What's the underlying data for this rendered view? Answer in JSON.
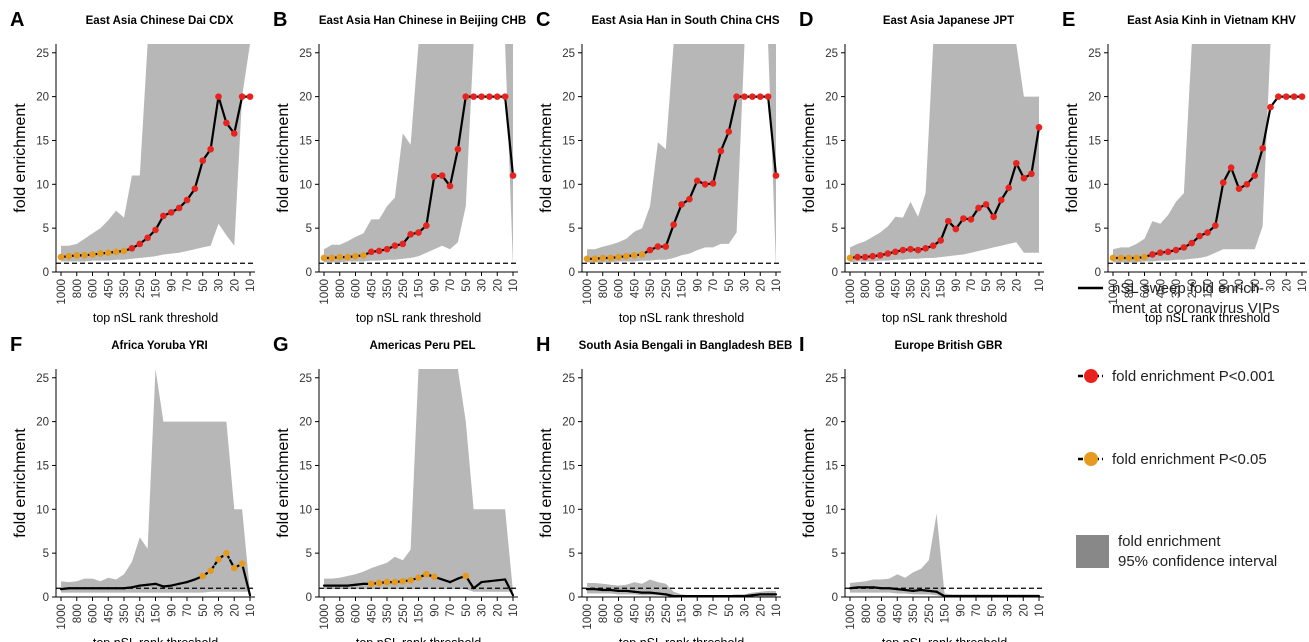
{
  "chart_data": {
    "type": "line",
    "layout": "multi-panel small multiples with shared legend",
    "x_tick_labels": [
      "1000",
      "800",
      "600",
      "450",
      "350",
      "250",
      "150",
      "90",
      "70",
      "50",
      "30",
      "20",
      "10"
    ],
    "x": [
      1000,
      900,
      800,
      700,
      600,
      500,
      450,
      400,
      350,
      300,
      250,
      200,
      150,
      100,
      90,
      80,
      70,
      60,
      50,
      40,
      30,
      25,
      20,
      15,
      10
    ],
    "ylim": [
      0,
      26
    ],
    "y_ticks": [
      "0",
      "5",
      "10",
      "15",
      "20",
      "25"
    ],
    "xlabel": "top nSL rank threshold",
    "ylabel": "fold enrichment",
    "reference_line": 1,
    "grid": false,
    "colors": {
      "line": "#000000",
      "p001": "#e8221c",
      "p05": "#e69a1e",
      "ci": "#b7b7b7",
      "legend_ci": "#888888"
    },
    "panels": [
      {
        "letter": "A",
        "title": "East Asia Chinese Dai CDX",
        "y": [
          1.7,
          1.8,
          1.9,
          1.9,
          2.0,
          2.1,
          2.2,
          2.3,
          2.4,
          2.7,
          3.2,
          3.9,
          4.8,
          6.4,
          6.8,
          7.3,
          8.2,
          9.5,
          12.7,
          14.0,
          20.0,
          17.0,
          15.8,
          20.0,
          20.0
        ],
        "sig": [
          2,
          2,
          2,
          2,
          2,
          2,
          2,
          2,
          2,
          1,
          1,
          1,
          1,
          1,
          1,
          1,
          1,
          1,
          1,
          1,
          1,
          1,
          1,
          1,
          1
        ],
        "ci_low": [
          1.2,
          1.2,
          1.2,
          1.2,
          1.3,
          1.3,
          1.3,
          1.4,
          1.4,
          1.5,
          1.6,
          1.7,
          1.8,
          2.0,
          2.1,
          2.2,
          2.4,
          2.6,
          2.8,
          3.0,
          5.5,
          4.2,
          3.0,
          20.0,
          26
        ],
        "ci_high": [
          3.0,
          3.0,
          3.2,
          3.8,
          4.4,
          5.0,
          5.9,
          7.0,
          6.2,
          11.0,
          11.0,
          26,
          26,
          26,
          26,
          26,
          26,
          26,
          26,
          26,
          26,
          26,
          26,
          26,
          26
        ]
      },
      {
        "letter": "B",
        "title": "East Asia Han Chinese in Beijing CHB",
        "y": [
          1.6,
          1.6,
          1.7,
          1.7,
          1.8,
          1.9,
          2.3,
          2.4,
          2.6,
          3.0,
          3.2,
          4.3,
          4.5,
          5.3,
          10.9,
          11.0,
          9.8,
          14.0,
          20.0,
          20.0,
          20.0,
          20.0,
          20.0,
          20.0,
          11.0
        ],
        "sig": [
          2,
          2,
          2,
          2,
          2,
          2,
          1,
          1,
          1,
          1,
          1,
          1,
          1,
          1,
          1,
          1,
          1,
          1,
          1,
          1,
          1,
          1,
          1,
          1,
          1
        ],
        "ci_low": [
          1.1,
          1.1,
          1.1,
          1.2,
          1.2,
          1.2,
          1.3,
          1.3,
          1.4,
          1.4,
          1.5,
          1.6,
          1.8,
          2.2,
          2.6,
          3.0,
          2.6,
          3.4,
          7.5,
          26,
          26,
          26,
          26,
          26,
          0.6
        ],
        "ci_high": [
          2.6,
          3.1,
          3.1,
          3.5,
          4.0,
          4.4,
          6.0,
          6.0,
          7.5,
          8.5,
          15.8,
          14.5,
          26,
          26,
          26,
          26,
          26,
          26,
          26,
          26,
          26,
          26,
          26,
          26,
          26
        ]
      },
      {
        "letter": "C",
        "title": "East Asia Han in South China CHS",
        "y": [
          1.5,
          1.5,
          1.6,
          1.6,
          1.7,
          1.8,
          1.9,
          2.0,
          2.5,
          2.9,
          2.9,
          5.4,
          7.7,
          8.3,
          10.4,
          10.0,
          10.1,
          13.8,
          16.0,
          20.0,
          20.0,
          20.0,
          20.0,
          20.0,
          11.0
        ],
        "sig": [
          2,
          2,
          2,
          2,
          2,
          2,
          2,
          2,
          1,
          1,
          1,
          1,
          1,
          1,
          1,
          1,
          1,
          1,
          1,
          1,
          1,
          1,
          1,
          1,
          1
        ],
        "ci_low": [
          1.1,
          1.1,
          1.1,
          1.1,
          1.2,
          1.2,
          1.2,
          1.3,
          1.3,
          1.4,
          1.4,
          1.6,
          1.9,
          2.1,
          2.5,
          2.8,
          2.8,
          3.2,
          3.2,
          4.5,
          26,
          26,
          26,
          26,
          0.6
        ],
        "ci_high": [
          2.6,
          2.6,
          2.9,
          3.1,
          3.4,
          3.8,
          4.6,
          5.0,
          7.5,
          14.8,
          14.0,
          26,
          26,
          26,
          26,
          26,
          26,
          26,
          26,
          26,
          26,
          26,
          26,
          26,
          26
        ]
      },
      {
        "letter": "D",
        "title": "East Asia Japanese JPT",
        "y": [
          1.6,
          1.7,
          1.7,
          1.8,
          1.9,
          2.1,
          2.3,
          2.5,
          2.6,
          2.5,
          2.7,
          3.0,
          3.6,
          5.8,
          4.9,
          6.1,
          6.0,
          7.3,
          7.7,
          6.3,
          8.2,
          9.6,
          12.4,
          10.7,
          11.2,
          16.5
        ],
        "sig": [
          2,
          1,
          1,
          1,
          1,
          1,
          1,
          1,
          1,
          1,
          1,
          1,
          1,
          1,
          1,
          1,
          1,
          1,
          1,
          1,
          1,
          1,
          1,
          1,
          1,
          1
        ],
        "x_override": [
          1000,
          900,
          800,
          700,
          600,
          500,
          450,
          400,
          350,
          300,
          250,
          200,
          150,
          100,
          90,
          80,
          70,
          60,
          50,
          40,
          30,
          25,
          20,
          17,
          15,
          10
        ],
        "ci_low": [
          1.1,
          1.2,
          1.2,
          1.2,
          1.3,
          1.3,
          1.4,
          1.4,
          1.5,
          1.5,
          1.6,
          1.6,
          1.7,
          1.8,
          1.9,
          2.0,
          2.2,
          2.4,
          2.6,
          2.8,
          3.0,
          3.2,
          3.4,
          2.2,
          2.2,
          2.2
        ],
        "ci_high": [
          2.8,
          3.2,
          3.5,
          4.0,
          4.5,
          5.2,
          6.3,
          6.2,
          8.0,
          6.3,
          9.0,
          26,
          26,
          26,
          26,
          26,
          26,
          26,
          26,
          26,
          26,
          26,
          26,
          20.0,
          20.0,
          20.0
        ]
      },
      {
        "letter": "E",
        "title": "East Asia Kinh in Vietnam KHV",
        "y": [
          1.6,
          1.6,
          1.6,
          1.6,
          1.7,
          2.0,
          2.2,
          2.3,
          2.5,
          2.8,
          3.3,
          4.1,
          4.5,
          5.3,
          10.2,
          11.9,
          9.5,
          10.0,
          11.0,
          14.1,
          18.8,
          20.0,
          20.0,
          20.0,
          20.0
        ],
        "sig": [
          2,
          2,
          2,
          2,
          2,
          1,
          1,
          1,
          1,
          1,
          1,
          1,
          1,
          1,
          1,
          1,
          1,
          1,
          1,
          1,
          1,
          1,
          1,
          1,
          1
        ],
        "ci_low": [
          1.1,
          1.1,
          1.1,
          1.1,
          1.2,
          1.2,
          1.3,
          1.3,
          1.4,
          1.4,
          1.5,
          1.6,
          1.8,
          2.2,
          2.6,
          2.6,
          2.6,
          2.6,
          2.6,
          5.2,
          26,
          26,
          26,
          26,
          26
        ],
        "ci_high": [
          2.6,
          2.8,
          2.8,
          3.2,
          3.8,
          5.8,
          5.5,
          6.5,
          8.0,
          9.0,
          26,
          26,
          26,
          26,
          26,
          26,
          26,
          26,
          26,
          26,
          26,
          26,
          26,
          26,
          26
        ]
      },
      {
        "letter": "F",
        "title": "Africa Yoruba YRI",
        "y": [
          0.9,
          1.0,
          1.0,
          1.0,
          1.0,
          1.0,
          1.0,
          1.0,
          1.0,
          1.1,
          1.3,
          1.4,
          1.5,
          1.2,
          1.3,
          1.5,
          1.7,
          2.0,
          2.4,
          3.0,
          4.3,
          5.0,
          3.3,
          3.8,
          0.2
        ],
        "sig": [
          0,
          0,
          0,
          0,
          0,
          0,
          0,
          0,
          0,
          0,
          0,
          0,
          0,
          0,
          0,
          0,
          0,
          0,
          2,
          2,
          2,
          2,
          2,
          2,
          0
        ],
        "ci_low": [
          0.5,
          0.5,
          0.5,
          0.5,
          0.5,
          0.5,
          0.5,
          0.5,
          0.5,
          0.5,
          0.5,
          0.5,
          0.5,
          0.5,
          0.5,
          0.5,
          0.5,
          0.5,
          0.5,
          0.6,
          0.6,
          0.6,
          0.6,
          0.6,
          0.6
        ],
        "ci_high": [
          1.8,
          1.7,
          1.8,
          2.1,
          2.1,
          1.8,
          2.2,
          2.0,
          2.6,
          4.0,
          6.8,
          5.5,
          26,
          20.0,
          20.0,
          20.0,
          20.0,
          20.0,
          20.0,
          20.0,
          20.0,
          20.0,
          10.0,
          10.0,
          0.6
        ]
      },
      {
        "letter": "G",
        "title": "Americas Peru PEL",
        "y": [
          1.3,
          1.3,
          1.3,
          1.3,
          1.4,
          1.5,
          1.5,
          1.6,
          1.7,
          1.7,
          1.8,
          1.9,
          2.2,
          2.6,
          2.3,
          2.0,
          1.7,
          2.1,
          2.4,
          1.0,
          1.7,
          1.8,
          1.9,
          2.0,
          0.2
        ],
        "sig": [
          0,
          0,
          0,
          0,
          0,
          0,
          2,
          2,
          2,
          2,
          2,
          2,
          2,
          2,
          2,
          0,
          0,
          0,
          2,
          0,
          0,
          0,
          0,
          0,
          0
        ],
        "ci_low": [
          0.9,
          0.9,
          0.9,
          0.9,
          0.9,
          0.9,
          0.9,
          0.9,
          0.9,
          0.9,
          0.9,
          0.9,
          0.9,
          0.9,
          0.9,
          0.9,
          0.9,
          0.9,
          0.9,
          0.6,
          0.6,
          0.6,
          0.6,
          0.6,
          0.6
        ],
        "ci_high": [
          2.1,
          2.1,
          2.2,
          2.4,
          2.6,
          2.9,
          3.3,
          3.6,
          3.9,
          4.6,
          4.2,
          5.4,
          26,
          26,
          26,
          26,
          26,
          26,
          20.0,
          10.0,
          10.0,
          10.0,
          10.0,
          10.0,
          0.6
        ]
      },
      {
        "letter": "H",
        "title": "South Asia Bengali in Bangladesh BEB",
        "y": [
          0.9,
          0.9,
          0.8,
          0.8,
          0.7,
          0.7,
          0.6,
          0.5,
          0.5,
          0.4,
          0.3,
          0.1,
          0.1,
          0.1,
          0.1,
          0.1,
          0.1,
          0.1,
          0.1,
          0.1,
          0.1,
          0.2,
          0.3,
          0.3,
          0.3
        ],
        "sig": [
          0,
          0,
          0,
          0,
          0,
          0,
          0,
          0,
          0,
          0,
          0,
          0,
          0,
          0,
          0,
          0,
          0,
          0,
          0,
          0,
          0,
          0,
          0,
          0,
          0
        ],
        "ci_low": [
          0.4,
          0.4,
          0.4,
          0.4,
          0.3,
          0.3,
          0.3,
          0.2,
          0.2,
          0.2,
          0.1,
          0.0,
          0.0,
          0.0,
          0.0,
          0.0,
          0.0,
          0.0,
          0.0,
          0.0,
          0.0,
          0.0,
          0.0,
          0.0,
          0.0
        ],
        "ci_high": [
          1.6,
          1.6,
          1.5,
          1.4,
          1.3,
          1.4,
          1.7,
          1.5,
          2.0,
          1.7,
          1.5,
          0.6,
          0.3,
          0.2,
          0.2,
          0.2,
          0.2,
          0.2,
          0.2,
          0.3,
          0.3,
          0.5,
          0.6,
          0.7,
          0.7
        ]
      },
      {
        "letter": "I",
        "title": "Europe British GBR",
        "y": [
          1.0,
          1.1,
          1.1,
          1.1,
          1.0,
          1.0,
          0.9,
          0.8,
          0.7,
          0.8,
          0.7,
          0.6,
          0.1,
          0.1,
          0.1,
          0.1,
          0.1,
          0.1,
          0.1,
          0.1,
          0.1,
          0.1,
          0.1,
          0.1,
          0.1
        ],
        "sig": [
          0,
          0,
          0,
          0,
          0,
          0,
          0,
          0,
          0,
          0,
          0,
          0,
          0,
          0,
          0,
          0,
          0,
          0,
          0,
          0,
          0,
          0,
          0,
          0,
          0
        ],
        "ci_low": [
          0.5,
          0.5,
          0.5,
          0.5,
          0.5,
          0.5,
          0.4,
          0.4,
          0.3,
          0.3,
          0.3,
          0.2,
          0.0,
          0.0,
          0.0,
          0.0,
          0.0,
          0.0,
          0.0,
          0.0,
          0.0,
          0.0,
          0.0,
          0.0,
          0.0
        ],
        "ci_high": [
          1.6,
          1.7,
          1.8,
          2.0,
          2.0,
          2.1,
          2.6,
          2.2,
          2.8,
          3.2,
          4.2,
          9.5,
          0.4,
          0.3,
          0.3,
          0.3,
          0.3,
          0.3,
          0.3,
          0.3,
          0.3,
          0.3,
          0.3,
          0.3,
          0.3
        ]
      }
    ],
    "legend": {
      "line": "nSL sweep fold enrich-\nment at coronavirus VIPs",
      "line_l1": "nSL sweep fold enrich-",
      "line_l2": "ment at coronavirus VIPs",
      "p001": "fold enrichment P<0.001",
      "p05": "fold enrichment P<0.05",
      "ci_l1": "fold enrichment",
      "ci_l2": "95% confidence interval"
    }
  }
}
